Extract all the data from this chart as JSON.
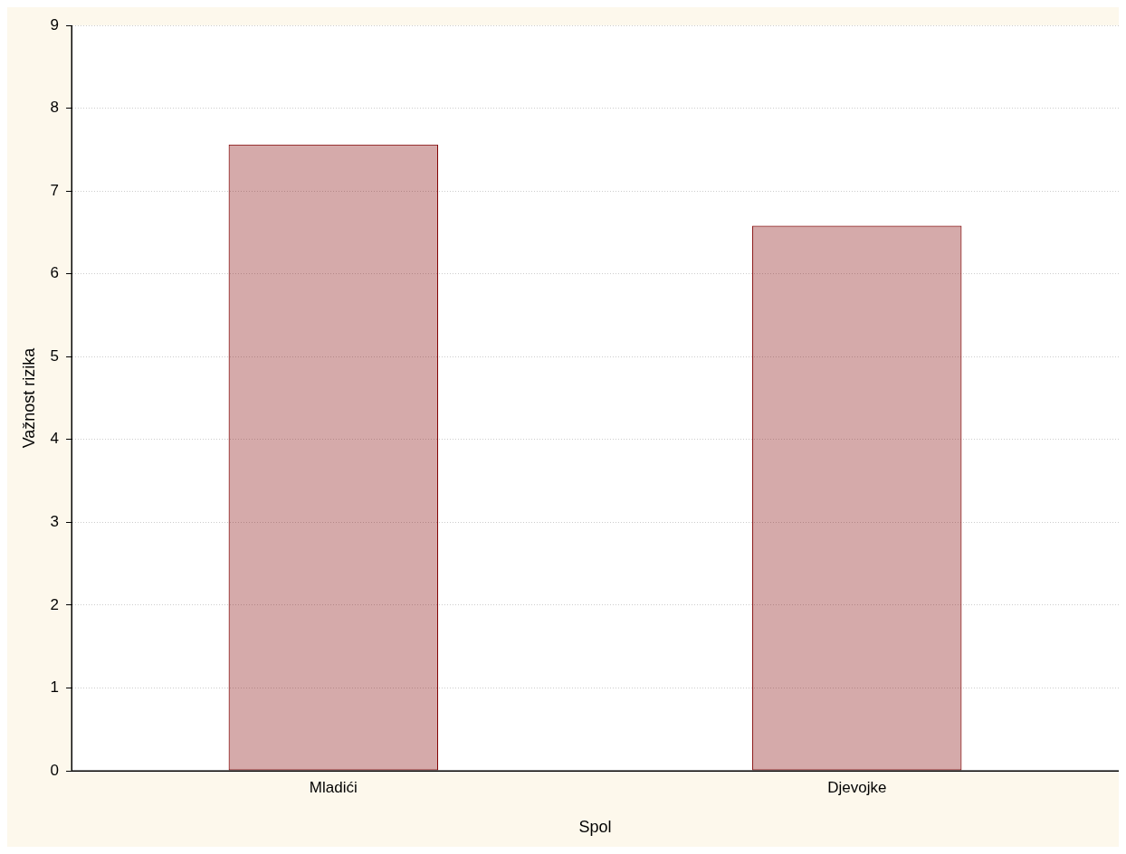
{
  "chart_data": {
    "type": "bar",
    "xlabel": "Spol",
    "ylabel": "Važnost rizika",
    "categories": [
      "Mladići",
      "Djevojke"
    ],
    "values": [
      7.56,
      6.58
    ],
    "color": "#800000",
    "ylim": [
      0,
      9
    ],
    "yticks": [
      0,
      1,
      2,
      3,
      4,
      5,
      6,
      7,
      8,
      9
    ],
    "grid": "y",
    "legend": false
  }
}
